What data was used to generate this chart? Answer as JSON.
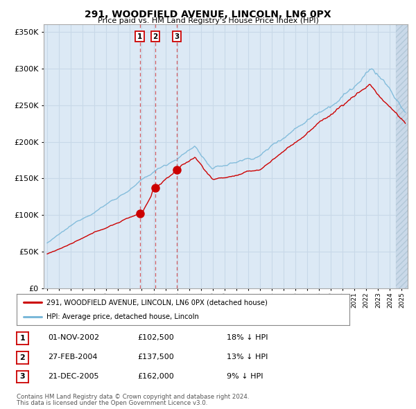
{
  "title": "291, WOODFIELD AVENUE, LINCOLN, LN6 0PX",
  "subtitle": "Price paid vs. HM Land Registry's House Price Index (HPI)",
  "legend_house": "291, WOODFIELD AVENUE, LINCOLN, LN6 0PX (detached house)",
  "legend_hpi": "HPI: Average price, detached house, Lincoln",
  "transactions": [
    {
      "label": "1",
      "date": "01-NOV-2002",
      "price": 102500,
      "pct": "18% ↓ HPI",
      "x_year": 2002.83
    },
    {
      "label": "2",
      "date": "27-FEB-2004",
      "price": 137500,
      "pct": "13% ↓ HPI",
      "x_year": 2004.16
    },
    {
      "label": "3",
      "date": "21-DEC-2005",
      "price": 162000,
      "pct": "9% ↓ HPI",
      "x_year": 2005.97
    }
  ],
  "footnote1": "Contains HM Land Registry data © Crown copyright and database right 2024.",
  "footnote2": "This data is licensed under the Open Government Licence v3.0.",
  "ylim": [
    0,
    360000
  ],
  "xlim_start": 1994.7,
  "xlim_end": 2025.5,
  "hpi_color": "#7ab8d9",
  "house_color": "#cc0000",
  "vline_color": "#cc0000",
  "marker_color": "#cc0000",
  "grid_color": "#c8d8e8",
  "plot_bg": "#dce9f5"
}
